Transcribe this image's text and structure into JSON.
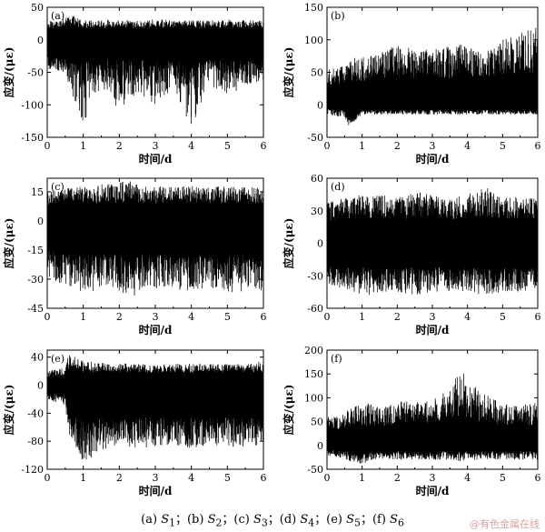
{
  "caption": {
    "p1": "(a) ",
    "s1": "S",
    "i1": "1",
    "sep1": "；(b) ",
    "s2": "S",
    "i2": "2",
    "sep2": "；(c) ",
    "s3": "S",
    "i3": "3",
    "sep3": "；(d) ",
    "s4": "S",
    "i4": "4",
    "sep4": "；(e) ",
    "s5": "S",
    "i5": "5",
    "sep5": "；(f) ",
    "s6": "S",
    "i6": "6"
  },
  "watermark": "@有色金属在线",
  "trace_color": "#000000",
  "chart_data": [
    {
      "type": "line",
      "panel_label": "(a)",
      "xlabel": "时间/d",
      "ylabel": "应变/(με)",
      "xlim": [
        0,
        6
      ],
      "ylim": [
        -150,
        50
      ],
      "xticks": [
        0,
        1,
        2,
        3,
        4,
        5,
        6
      ],
      "yticks": [
        50,
        0,
        -50,
        -100,
        -150
      ],
      "grid": false,
      "series": [
        {
          "x": [
            0,
            0.5,
            0.6,
            1.0,
            1.5,
            2.0,
            2.5,
            3.0,
            3.5,
            4.0,
            4.5,
            5.0,
            5.5,
            6.0
          ],
          "max": [
            28,
            32,
            40,
            30,
            30,
            32,
            30,
            32,
            30,
            30,
            30,
            32,
            30,
            30
          ],
          "min": [
            -45,
            -50,
            -70,
            -130,
            -70,
            -110,
            -80,
            -100,
            -75,
            -140,
            -70,
            -90,
            -70,
            -65
          ],
          "band_high": [
            15,
            20,
            22,
            18,
            18,
            18,
            18,
            18,
            18,
            18,
            18,
            18,
            18,
            18
          ],
          "band_low": [
            -25,
            -30,
            -35,
            -30,
            -30,
            -30,
            -30,
            -30,
            -30,
            -30,
            -30,
            -30,
            -30,
            -30
          ]
        }
      ]
    },
    {
      "type": "line",
      "panel_label": "(b)",
      "xlabel": "时间/d",
      "ylabel": "应变/(με)",
      "xlim": [
        0,
        6
      ],
      "ylim": [
        -50,
        150
      ],
      "xticks": [
        0,
        1,
        2,
        3,
        4,
        5,
        6
      ],
      "yticks": [
        150,
        100,
        50,
        0,
        -50
      ],
      "grid": false,
      "series": [
        {
          "x": [
            0,
            0.5,
            0.6,
            1.0,
            1.5,
            2.0,
            2.5,
            3.0,
            3.5,
            4.0,
            4.5,
            5.0,
            5.5,
            6.0
          ],
          "max": [
            55,
            60,
            70,
            75,
            80,
            95,
            85,
            85,
            90,
            95,
            80,
            100,
            110,
            120
          ],
          "min": [
            -15,
            -20,
            -35,
            -15,
            -15,
            -15,
            -15,
            -15,
            -15,
            -15,
            -15,
            -15,
            -15,
            -15
          ],
          "band_high": [
            30,
            30,
            35,
            35,
            40,
            40,
            40,
            40,
            40,
            45,
            40,
            45,
            45,
            50
          ],
          "band_low": [
            -5,
            -8,
            -20,
            -8,
            -8,
            -8,
            -8,
            -8,
            -8,
            -8,
            -8,
            -8,
            -8,
            -8
          ]
        }
      ]
    },
    {
      "type": "line",
      "panel_label": "(c)",
      "xlabel": "时间/d",
      "ylabel": "应变/(με)",
      "xlim": [
        0,
        6
      ],
      "ylim": [
        -45,
        22
      ],
      "xticks": [
        0,
        1,
        2,
        3,
        4,
        5,
        6
      ],
      "yticks": [
        15,
        0,
        -15,
        -30,
        -45
      ],
      "grid": false,
      "series": [
        {
          "x": [
            0,
            0.5,
            1.0,
            1.5,
            2.0,
            2.4,
            2.5,
            3.0,
            3.5,
            4.0,
            4.5,
            5.0,
            5.5,
            6.0
          ],
          "max": [
            15,
            17,
            18,
            19,
            20,
            22,
            18,
            18,
            18,
            18,
            18,
            18,
            18,
            18
          ],
          "min": [
            -30,
            -33,
            -38,
            -35,
            -36,
            -40,
            -36,
            -35,
            -36,
            -36,
            -35,
            -38,
            -36,
            -36
          ],
          "band_high": [
            8,
            9,
            9,
            9,
            9,
            9,
            9,
            9,
            9,
            9,
            9,
            9,
            9,
            9
          ],
          "band_low": [
            -15,
            -16,
            -17,
            -17,
            -17,
            -18,
            -17,
            -17,
            -17,
            -17,
            -17,
            -17,
            -17,
            -17
          ]
        }
      ]
    },
    {
      "type": "line",
      "panel_label": "(d)",
      "xlabel": "时间/d",
      "ylabel": "应变/(με)",
      "xlim": [
        0,
        6
      ],
      "ylim": [
        -60,
        60
      ],
      "xticks": [
        0,
        1,
        2,
        3,
        4,
        5,
        6
      ],
      "yticks": [
        60,
        30,
        0,
        -30,
        -60
      ],
      "grid": false,
      "series": [
        {
          "x": [
            0,
            0.5,
            1.0,
            1.5,
            2.0,
            2.5,
            3.0,
            3.5,
            4.0,
            4.5,
            5.0,
            5.5,
            6.0
          ],
          "max": [
            38,
            42,
            45,
            45,
            42,
            48,
            45,
            42,
            45,
            52,
            45,
            42,
            42
          ],
          "min": [
            -38,
            -42,
            -50,
            -45,
            -45,
            -48,
            -45,
            -45,
            -45,
            -48,
            -45,
            -45,
            -42
          ],
          "band_high": [
            20,
            22,
            22,
            22,
            22,
            22,
            22,
            22,
            22,
            22,
            22,
            22,
            22
          ],
          "band_low": [
            -20,
            -22,
            -22,
            -22,
            -22,
            -22,
            -22,
            -22,
            -22,
            -22,
            -22,
            -22,
            -22
          ]
        }
      ]
    },
    {
      "type": "line",
      "panel_label": "(e)",
      "xlabel": "时间/d",
      "ylabel": "应变/(με)",
      "xlim": [
        0,
        6
      ],
      "ylim": [
        -120,
        50
      ],
      "xticks": [
        0,
        1,
        2,
        3,
        4,
        5,
        6
      ],
      "yticks": [
        40,
        0,
        -40,
        -80,
        -120
      ],
      "grid": false,
      "series": [
        {
          "x": [
            0,
            0.5,
            0.6,
            1.0,
            1.5,
            2.0,
            2.5,
            3.0,
            3.5,
            4.0,
            4.5,
            5.0,
            5.5,
            6.0
          ],
          "max": [
            20,
            25,
            45,
            35,
            32,
            32,
            30,
            30,
            30,
            32,
            30,
            30,
            30,
            35
          ],
          "min": [
            -20,
            -30,
            -70,
            -110,
            -95,
            -85,
            -90,
            -90,
            -85,
            -90,
            -85,
            -90,
            -90,
            -95
          ],
          "band_high": [
            10,
            12,
            22,
            18,
            18,
            18,
            18,
            18,
            18,
            18,
            18,
            18,
            18,
            18
          ],
          "band_low": [
            -10,
            -15,
            -45,
            -45,
            -45,
            -45,
            -45,
            -45,
            -45,
            -45,
            -45,
            -45,
            -45,
            -45
          ]
        }
      ]
    },
    {
      "type": "line",
      "panel_label": "(f)",
      "xlabel": "时间/d",
      "ylabel": "应变/(με)",
      "xlim": [
        0,
        6
      ],
      "ylim": [
        -50,
        200
      ],
      "xticks": [
        0,
        1,
        2,
        3,
        4,
        5,
        6
      ],
      "yticks": [
        200,
        150,
        100,
        50,
        0,
        -50
      ],
      "grid": false,
      "series": [
        {
          "x": [
            0,
            0.5,
            1.0,
            1.5,
            2.0,
            2.5,
            3.0,
            3.5,
            3.8,
            4.0,
            4.5,
            5.0,
            5.5,
            6.0
          ],
          "max": [
            60,
            70,
            90,
            85,
            95,
            90,
            95,
            120,
            160,
            140,
            110,
            90,
            80,
            100
          ],
          "min": [
            -20,
            -30,
            -40,
            -30,
            -30,
            -30,
            -30,
            -30,
            -35,
            -30,
            -30,
            -30,
            -30,
            -30
          ],
          "band_high": [
            30,
            35,
            40,
            40,
            40,
            40,
            45,
            50,
            60,
            55,
            45,
            40,
            40,
            40
          ],
          "band_low": [
            -8,
            -12,
            -15,
            -12,
            -12,
            -12,
            -12,
            -12,
            -12,
            -12,
            -12,
            -12,
            -12,
            -12
          ]
        }
      ]
    }
  ]
}
